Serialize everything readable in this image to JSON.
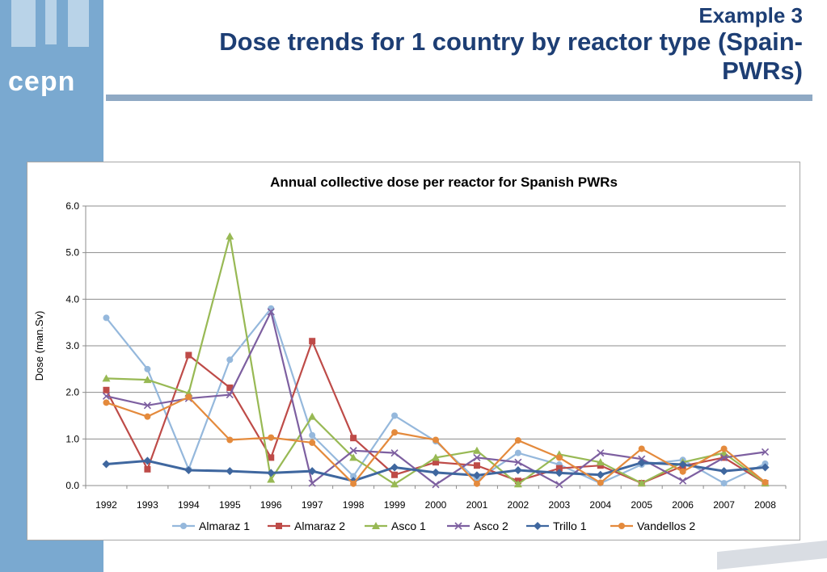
{
  "slide": {
    "title_line1": "Example 3",
    "title_line2": "Dose trends for 1 country by reactor type (Spain-",
    "title_line3": "PWRs)",
    "logo": "cepn"
  },
  "colors": {
    "sidebar": "#7aa9d0",
    "title": "#1d3e74",
    "grid": "#8c8c8c"
  },
  "chart_data": {
    "type": "line",
    "title": "Annual collective dose per reactor for Spanish PWRs",
    "xlabel": "",
    "ylabel": "Dose (man.Sv)",
    "ylim": [
      0,
      6
    ],
    "yticks": [
      "0.0",
      "1.0",
      "2.0",
      "3.0",
      "4.0",
      "5.0",
      "6.0"
    ],
    "grid": true,
    "legend_position": "bottom",
    "categories": [
      "1992",
      "1993",
      "1994",
      "1995",
      "1996",
      "1997",
      "1998",
      "1999",
      "2000",
      "2001",
      "2002",
      "2003",
      "2004",
      "2005",
      "2006",
      "2007",
      "2008"
    ],
    "series": [
      {
        "name": "Almaraz 1",
        "color": "#95b8dc",
        "marker": "circle",
        "values": [
          3.6,
          2.5,
          0.35,
          2.7,
          3.8,
          1.08,
          0.2,
          1.5,
          0.95,
          0.12,
          0.7,
          0.45,
          0.05,
          0.45,
          0.55,
          0.05,
          0.47
        ]
      },
      {
        "name": "Almaraz 2",
        "color": "#be4b48",
        "marker": "square",
        "values": [
          2.05,
          0.35,
          2.8,
          2.1,
          0.6,
          3.1,
          1.02,
          0.23,
          0.5,
          0.43,
          0.1,
          0.37,
          0.43,
          0.05,
          0.42,
          0.6,
          0.05
        ]
      },
      {
        "name": "Asco 1",
        "color": "#98b954",
        "marker": "triangle",
        "values": [
          2.3,
          2.27,
          1.98,
          5.35,
          0.13,
          1.48,
          0.6,
          0.03,
          0.6,
          0.75,
          0.03,
          0.67,
          0.5,
          0.05,
          0.5,
          0.7,
          0.05
        ]
      },
      {
        "name": "Asco 2",
        "color": "#7d5fa0",
        "marker": "x",
        "values": [
          1.92,
          1.72,
          1.87,
          1.95,
          3.73,
          0.05,
          0.75,
          0.7,
          0.02,
          0.6,
          0.5,
          0.02,
          0.7,
          0.57,
          0.1,
          0.6,
          0.72
        ]
      },
      {
        "name": "Trillo 1",
        "color": "#3f679f",
        "marker": "diamond",
        "values": [
          0.46,
          0.53,
          0.33,
          0.31,
          0.27,
          0.31,
          0.1,
          0.39,
          0.28,
          0.22,
          0.33,
          0.27,
          0.23,
          0.49,
          0.45,
          0.31,
          0.39
        ]
      },
      {
        "name": "Vandellos 2",
        "color": "#e48a3c",
        "marker": "circle",
        "values": [
          1.78,
          1.48,
          1.9,
          0.98,
          1.03,
          0.92,
          0.04,
          1.14,
          0.98,
          0.04,
          0.97,
          0.6,
          0.06,
          0.79,
          0.3,
          0.79,
          0.07
        ]
      }
    ]
  }
}
